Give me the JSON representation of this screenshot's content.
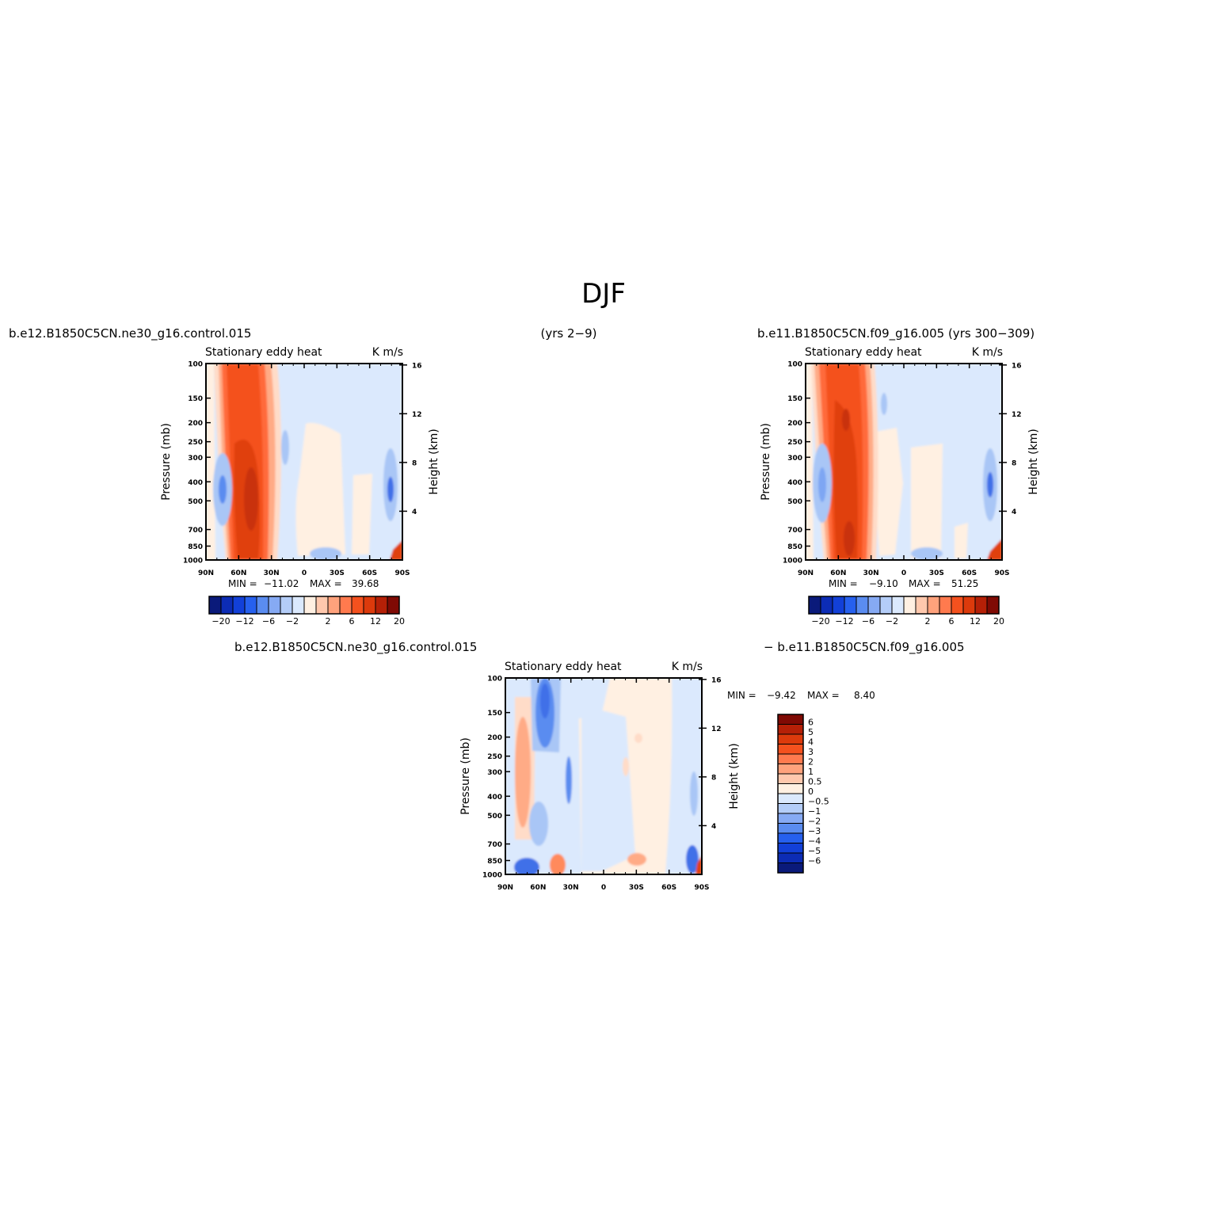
{
  "figure": {
    "title": "DJF",
    "case_left": "b.e12.B1850C5CN.ne30_g16.control.015",
    "years_left": "(yrs 2−9)",
    "case_right": "b.e11.B1850C5CN.f09_g16.005 (yrs 300−309)",
    "diff_left": "b.e12.B1850C5CN.ne30_g16.control.015",
    "diff_right": "− b.e11.B1850C5CN.f09_g16.005"
  },
  "colors": {
    "red_dark": "#8b0000",
    "red_mid": "#e0400f",
    "orange": "#ff6a3a",
    "peach": "#ffdcc8",
    "cream": "#fff0e2",
    "pale_blue": "#dbe9fd",
    "blue_light": "#a9c6f6",
    "blue_mid": "#5a8cf0",
    "blue_dark": "#0a1e9a"
  },
  "chart_data": [
    {
      "id": "panel-1",
      "type": "heatmap",
      "title": "Stationary eddy heat",
      "units": "K m/s",
      "xlabel": "",
      "ylabel": "Pressure (mb)",
      "y2label": "Height (km)",
      "x_ticks": [
        "90N",
        "60N",
        "30N",
        "0",
        "30S",
        "60S",
        "90S"
      ],
      "y_ticks": [
        "100",
        "150",
        "200",
        "250",
        "300",
        "400",
        "500",
        "700",
        "850",
        "1000"
      ],
      "y_scale": "log",
      "y2_ticks": [
        "16",
        "12",
        "8",
        "4"
      ],
      "min_label": "MIN =",
      "min_value": "−11.02",
      "max_label": "MAX =",
      "max_value": "39.68",
      "colorbar": {
        "orientation": "horizontal",
        "labels": [
          "−20",
          "−12",
          "−6",
          "−2",
          "2",
          "6",
          "12",
          "20"
        ]
      }
    },
    {
      "id": "panel-2",
      "type": "heatmap",
      "title": "Stationary eddy heat",
      "units": "K m/s",
      "xlabel": "",
      "ylabel": "Pressure (mb)",
      "y2label": "Height (km)",
      "x_ticks": [
        "90N",
        "60N",
        "30N",
        "0",
        "30S",
        "60S",
        "90S"
      ],
      "y_ticks": [
        "100",
        "150",
        "200",
        "250",
        "300",
        "400",
        "500",
        "700",
        "850",
        "1000"
      ],
      "y_scale": "log",
      "y2_ticks": [
        "16",
        "12",
        "8",
        "4"
      ],
      "min_label": "MIN =",
      "min_value": "−9.10",
      "max_label": "MAX =",
      "max_value": "51.25",
      "colorbar": {
        "orientation": "horizontal",
        "labels": [
          "−20",
          "−12",
          "−6",
          "−2",
          "2",
          "6",
          "12",
          "20"
        ]
      }
    },
    {
      "id": "panel-diff",
      "type": "heatmap",
      "title": "Stationary eddy heat",
      "units": "K m/s",
      "xlabel": "",
      "ylabel": "Pressure (mb)",
      "y2label": "Height (km)",
      "x_ticks": [
        "90N",
        "60N",
        "30N",
        "0",
        "30S",
        "60S",
        "90S"
      ],
      "y_ticks": [
        "100",
        "150",
        "200",
        "250",
        "300",
        "400",
        "500",
        "700",
        "850",
        "1000"
      ],
      "y_scale": "log",
      "y2_ticks": [
        "16",
        "12",
        "8",
        "4"
      ],
      "min_label": "MIN =",
      "min_value": "−9.42",
      "max_label": "MAX =",
      "max_value": "8.40",
      "colorbar": {
        "orientation": "vertical",
        "labels": [
          "6",
          "5",
          "4",
          "3",
          "2",
          "1",
          "0.5",
          "0",
          "−0.5",
          "−1",
          "−2",
          "−3",
          "−4",
          "−5",
          "−6"
        ]
      }
    }
  ]
}
